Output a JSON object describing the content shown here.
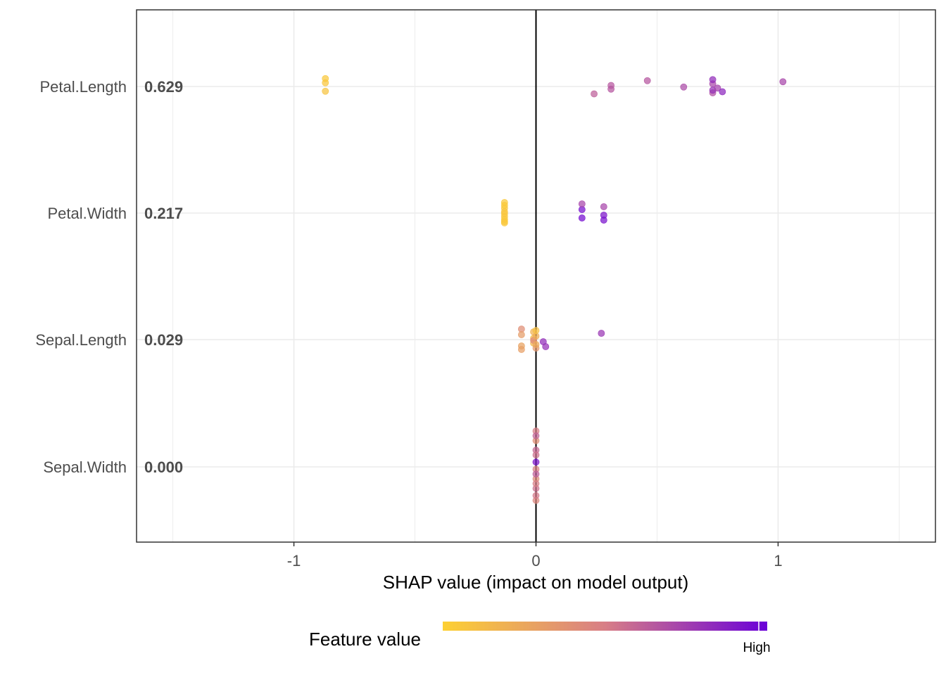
{
  "chart_data": {
    "type": "scatter",
    "xlabel": "SHAP value (impact on model output)",
    "xlim": [
      -1.65,
      1.65
    ],
    "x_ticks": [
      -1,
      0,
      1
    ],
    "x_tick_labels": [
      "-1",
      "0",
      "1"
    ],
    "grid": true,
    "legend": {
      "title": "Feature value",
      "high_label": "High",
      "placement": "bottom",
      "color_low": "#FDD033",
      "color_mid": "#D87E86",
      "color_high": "#6A00D8"
    },
    "features": [
      {
        "name": "Petal.Length",
        "importance": "0.629",
        "points": [
          {
            "x": -0.87,
            "v": 0.05
          },
          {
            "x": -0.87,
            "v": 0.08
          },
          {
            "x": -0.87,
            "v": 0.06
          },
          {
            "x": 0.24,
            "v": 0.62
          },
          {
            "x": 0.31,
            "v": 0.65
          },
          {
            "x": 0.31,
            "v": 0.66
          },
          {
            "x": 0.46,
            "v": 0.66
          },
          {
            "x": 0.61,
            "v": 0.7
          },
          {
            "x": 0.73,
            "v": 0.68
          },
          {
            "x": 0.73,
            "v": 0.72
          },
          {
            "x": 0.73,
            "v": 0.8
          },
          {
            "x": 0.73,
            "v": 0.82
          },
          {
            "x": 0.75,
            "v": 0.74
          },
          {
            "x": 0.77,
            "v": 0.84
          },
          {
            "x": 1.02,
            "v": 0.72
          }
        ]
      },
      {
        "name": "Petal.Width",
        "importance": "0.217",
        "points": [
          {
            "x": -0.13,
            "v": 0.04
          },
          {
            "x": -0.13,
            "v": 0.05
          },
          {
            "x": -0.13,
            "v": 0.06
          },
          {
            "x": -0.13,
            "v": 0.05
          },
          {
            "x": -0.13,
            "v": 0.07
          },
          {
            "x": -0.13,
            "v": 0.05
          },
          {
            "x": -0.13,
            "v": 0.04
          },
          {
            "x": -0.13,
            "v": 0.06
          },
          {
            "x": -0.13,
            "v": 0.05
          },
          {
            "x": 0.19,
            "v": 0.94
          },
          {
            "x": 0.19,
            "v": 0.95
          },
          {
            "x": 0.19,
            "v": 0.72
          },
          {
            "x": 0.28,
            "v": 0.92
          },
          {
            "x": 0.28,
            "v": 0.93
          },
          {
            "x": 0.28,
            "v": 0.72
          }
        ]
      },
      {
        "name": "Sepal.Length",
        "importance": "0.029",
        "points": [
          {
            "x": -0.06,
            "v": 0.4
          },
          {
            "x": -0.06,
            "v": 0.28
          },
          {
            "x": -0.06,
            "v": 0.32
          },
          {
            "x": -0.06,
            "v": 0.3
          },
          {
            "x": -0.01,
            "v": 0.12
          },
          {
            "x": -0.01,
            "v": 0.15
          },
          {
            "x": -0.01,
            "v": 0.18
          },
          {
            "x": -0.01,
            "v": 0.45
          },
          {
            "x": 0.0,
            "v": 0.35
          },
          {
            "x": 0.0,
            "v": 0.22
          },
          {
            "x": 0.0,
            "v": 0.25
          },
          {
            "x": 0.0,
            "v": 0.1
          },
          {
            "x": 0.03,
            "v": 0.82
          },
          {
            "x": 0.04,
            "v": 0.8
          },
          {
            "x": 0.27,
            "v": 0.78
          }
        ]
      },
      {
        "name": "Sepal.Width",
        "importance": "0.000",
        "points": [
          {
            "x": 0.0,
            "v": 0.5
          },
          {
            "x": 0.0,
            "v": 0.55
          },
          {
            "x": 0.0,
            "v": 0.58
          },
          {
            "x": 0.0,
            "v": 0.45
          },
          {
            "x": 0.0,
            "v": 0.92
          },
          {
            "x": 0.0,
            "v": 0.42
          },
          {
            "x": 0.0,
            "v": 0.4
          },
          {
            "x": 0.0,
            "v": 0.48
          },
          {
            "x": 0.0,
            "v": 0.52
          },
          {
            "x": 0.0,
            "v": 0.55
          },
          {
            "x": 0.0,
            "v": 0.5
          },
          {
            "x": 0.0,
            "v": 0.6
          },
          {
            "x": 0.0,
            "v": 0.62
          }
        ]
      }
    ]
  }
}
